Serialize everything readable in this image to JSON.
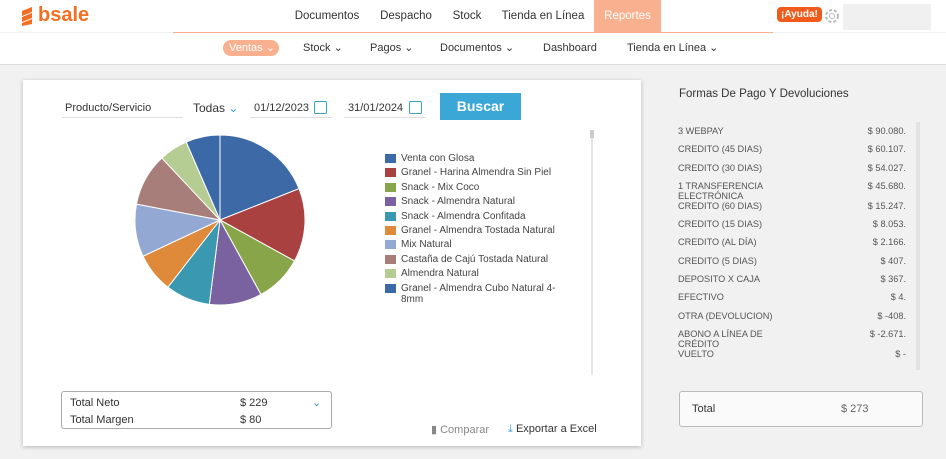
{
  "nav": {
    "logo": "bsale",
    "top_menu": [
      "Documentos",
      "Despacho",
      "Stock",
      "Tienda en Línea",
      "Reportes"
    ],
    "help": "¡Ayuda!",
    "sub_menu": [
      "Ventas",
      "Stock",
      "Pagos",
      "Documentos",
      "Dashboard",
      "Tienda en Línea"
    ]
  },
  "filters": {
    "product": "Producto/Servicio",
    "scope": "Todas",
    "date_from": "01/12/2023",
    "date_to": "31/01/2024",
    "button": "Buscar"
  },
  "chart_data": {
    "type": "pie",
    "categories": [
      "Venta con Glosa",
      "Granel - Harina Almendra Sin Piel",
      "Snack - Mix Coco",
      "Snack - Almendra Natural",
      "Snack - Almendra Confitada",
      "Granel - Almendra Tostada Natural",
      "Mix Natural",
      "Castaña de Cajú Tostada Natural",
      "Almendra Natural",
      "Granel - Almendra Cubo Natural 4-8mm"
    ],
    "values": [
      19,
      14,
      9,
      10,
      8.5,
      7.5,
      10,
      10,
      5.5,
      6.5
    ],
    "colors": [
      "#3d6aa7",
      "#a8413f",
      "#89a54a",
      "#7a62a0",
      "#3a99b0",
      "#df893b",
      "#93a9d4",
      "#a87e7b",
      "#b5cc92",
      "#3b68a6"
    ]
  },
  "totals": [
    {
      "label": "Total Neto",
      "value": "$ 229"
    },
    {
      "label": "Total Margen",
      "value": "$ 80"
    }
  ],
  "actions": {
    "compare": "Comparar",
    "export": "Exportar a Excel"
  },
  "payments": {
    "title": "Formas De Pago Y Devoluciones",
    "rows": [
      [
        "3 WEBPAY",
        "$ 90.080."
      ],
      [
        "CREDITO (45 DIAS)",
        "$ 60.107."
      ],
      [
        "CREDITO (30 DIAS)",
        "$ 54.027."
      ],
      [
        "1 TRANSFERENCIA ELECTRÓNICA",
        "$ 45.680."
      ],
      [
        "CREDITO (60 DIAS)",
        "$ 15.247."
      ],
      [
        "CREDITO (15 DIAS)",
        "$ 8.053."
      ],
      [
        "CREDITO (AL DÍA)",
        "$ 2.166."
      ],
      [
        "CREDITO (5 DIAS)",
        "$ 407."
      ],
      [
        "DEPOSITO X CAJA",
        "$ 367."
      ],
      [
        "EFECTIVO",
        "$ 4."
      ],
      [
        "OTRA (DEVOLUCION)",
        "$ -408."
      ],
      [
        "ABONO A LÍNEA DE CRÉDITO",
        "$ -2.671."
      ],
      [
        "VUELTO",
        "$ -"
      ]
    ],
    "total_label": "Total",
    "total_value": "$ 273"
  }
}
